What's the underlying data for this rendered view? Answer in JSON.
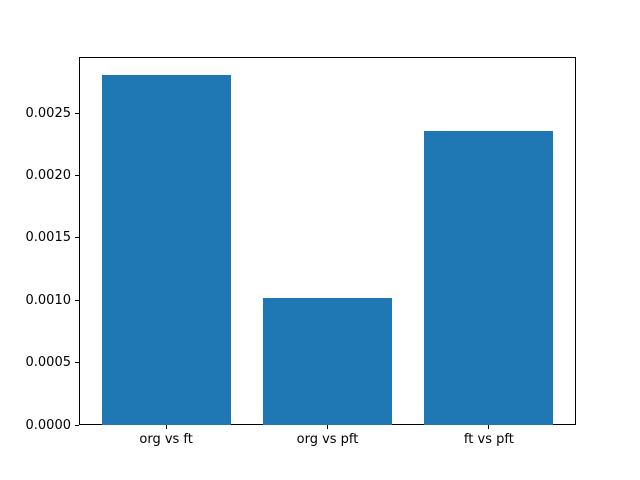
{
  "figure": {
    "background": "#ffffff",
    "frame_color": "#000000"
  },
  "chart_data": {
    "type": "bar",
    "title": "",
    "xlabel": "",
    "ylabel": "",
    "categories": [
      "org vs ft",
      "org vs pft",
      "ft vs pft"
    ],
    "values": [
      0.00281,
      0.00102,
      0.00236
    ],
    "bar_color": "#1f77b4",
    "bar_width": 0.8,
    "x": [
      0,
      1,
      2
    ],
    "xlim": [
      -0.54,
      2.54
    ],
    "ylim": [
      0,
      0.0029505
    ],
    "ytick_values": [
      0.0,
      0.0005,
      0.001,
      0.0015,
      0.002,
      0.0025
    ],
    "ytick_labels": [
      "0.0000",
      "0.0005",
      "0.0010",
      "0.0015",
      "0.0020",
      "0.0025"
    ],
    "grid": false,
    "legend": null
  }
}
